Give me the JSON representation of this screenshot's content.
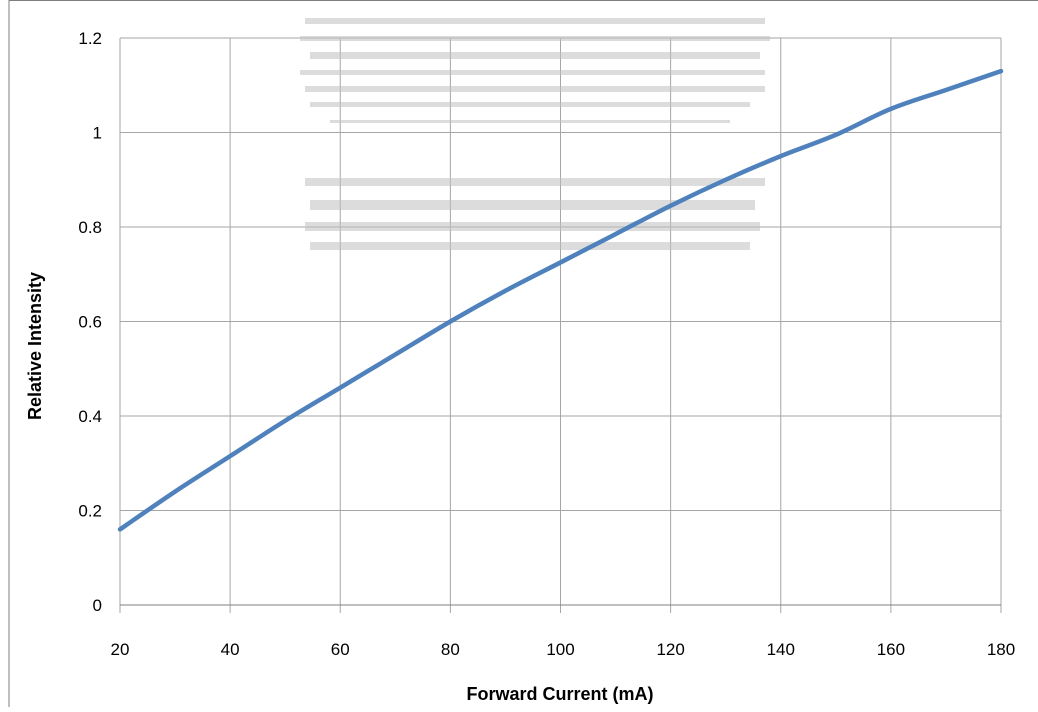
{
  "chart_data": {
    "type": "line",
    "title": "",
    "xlabel": "Forward Current (mA)",
    "ylabel": "Relative Intensity",
    "xlim": [
      20,
      180
    ],
    "ylim": [
      0,
      1.2
    ],
    "x_ticks": [
      20,
      40,
      60,
      80,
      100,
      120,
      140,
      160,
      180
    ],
    "y_ticks": [
      0,
      0.2,
      0.4,
      0.6,
      0.8,
      1,
      1.2
    ],
    "x_tick_labels": [
      "20",
      "40",
      "60",
      "80",
      "100",
      "120",
      "140",
      "160",
      "180"
    ],
    "y_tick_labels": [
      "0",
      "0.2",
      "0.4",
      "0.6",
      "0.8",
      "1",
      "1.2"
    ],
    "grid": true,
    "legend": "none",
    "series": [
      {
        "x": [
          20,
          30,
          40,
          50,
          60,
          70,
          80,
          90,
          100,
          110,
          120,
          130,
          140,
          150,
          160,
          170,
          180
        ],
        "y": [
          0.16,
          0.24,
          0.315,
          0.39,
          0.46,
          0.53,
          0.6,
          0.665,
          0.725,
          0.785,
          0.845,
          0.9,
          0.95,
          0.995,
          1.05,
          1.09,
          1.13
        ],
        "color": "#4f81bd"
      }
    ]
  }
}
